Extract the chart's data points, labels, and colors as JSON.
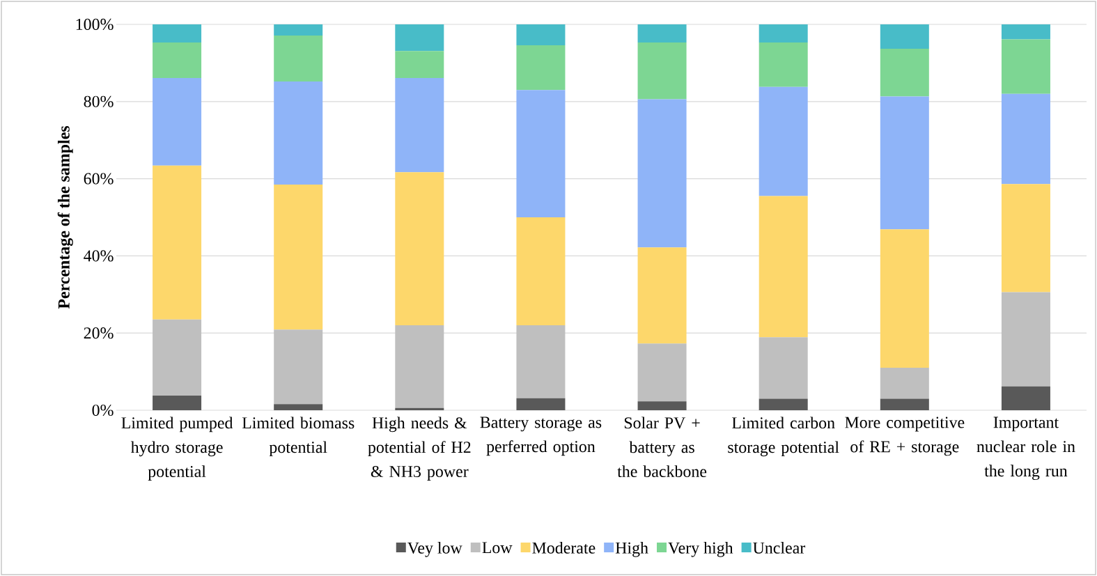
{
  "chart_data": {
    "type": "bar",
    "stacked": true,
    "ylabel": "Percentage of the samples",
    "categories": [
      "Limited pumped hydro storage potential",
      "Limited biomass potential",
      "High needs & potential of H2 & NH3 power",
      "Battery storage as perferred option",
      "Solar PV + battery as the backbone",
      "Limited carbon storage potential",
      "More competitive of RE + storage",
      "Important nuclear role in the long run"
    ],
    "series": [
      {
        "name": "Vey low",
        "color": "#595959",
        "values": [
          3.8,
          1.6,
          0.6,
          3.1,
          2.3,
          3.0,
          3.0,
          6.2
        ]
      },
      {
        "name": "Low",
        "color": "#bfbfbf",
        "values": [
          19.7,
          19.3,
          21.4,
          18.9,
          15.0,
          15.9,
          8.0,
          24.4
        ]
      },
      {
        "name": "Moderate",
        "color": "#fdd76b",
        "values": [
          39.9,
          37.6,
          39.7,
          28.0,
          24.9,
          36.6,
          35.9,
          28.0
        ]
      },
      {
        "name": "High",
        "color": "#8fb4f8",
        "values": [
          22.7,
          26.7,
          24.4,
          33.0,
          38.4,
          28.3,
          34.4,
          23.4
        ]
      },
      {
        "name": "Very high",
        "color": "#7dd693",
        "values": [
          9.2,
          11.9,
          7.0,
          11.6,
          14.7,
          11.5,
          12.4,
          14.1
        ]
      },
      {
        "name": "Unclear",
        "color": "#48bcc8",
        "values": [
          4.7,
          2.9,
          6.9,
          5.4,
          4.7,
          4.7,
          6.3,
          3.9
        ]
      }
    ],
    "ylim": [
      0,
      100
    ],
    "yticks": [
      {
        "value": 0,
        "label": "0%"
      },
      {
        "value": 20,
        "label": "20%"
      },
      {
        "value": 40,
        "label": "40%"
      },
      {
        "value": 60,
        "label": "60%"
      },
      {
        "value": 80,
        "label": "80%"
      },
      {
        "value": 100,
        "label": "100%"
      }
    ],
    "grid": "y",
    "legend": "bottom"
  }
}
